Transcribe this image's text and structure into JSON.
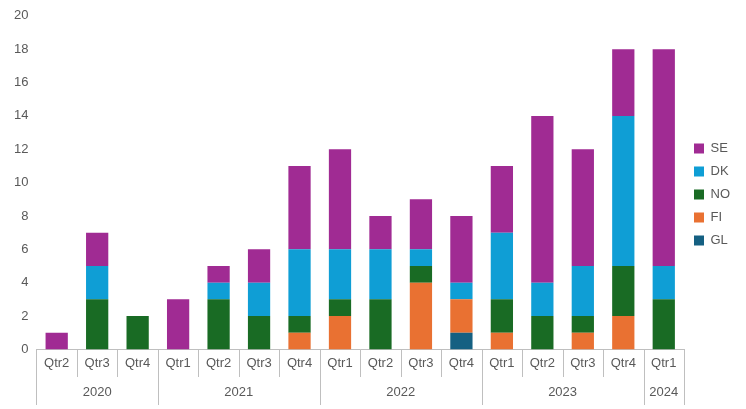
{
  "chart_data": {
    "type": "bar",
    "stacked": true,
    "categories": [
      "Qtr2",
      "Qtr3",
      "Qtr4",
      "Qtr1",
      "Qtr2",
      "Qtr3",
      "Qtr4",
      "Qtr1",
      "Qtr2",
      "Qtr3",
      "Qtr4",
      "Qtr1",
      "Qtr2",
      "Qtr3",
      "Qtr4",
      "Qtr1"
    ],
    "category_groups": [
      {
        "label": "2020",
        "count": 3
      },
      {
        "label": "2021",
        "count": 4
      },
      {
        "label": "2022",
        "count": 4
      },
      {
        "label": "2023",
        "count": 4
      },
      {
        "label": "2024",
        "count": 1
      }
    ],
    "series": [
      {
        "name": "GL",
        "color": "#156082",
        "values": [
          0,
          0,
          0,
          0,
          0,
          0,
          0,
          0,
          0,
          0,
          1,
          0,
          0,
          0,
          0,
          0
        ]
      },
      {
        "name": "FI",
        "color": "#E97132",
        "values": [
          0,
          0,
          0,
          0,
          0,
          0,
          1,
          2,
          0,
          4,
          2,
          1,
          0,
          1,
          2,
          0
        ]
      },
      {
        "name": "NO",
        "color": "#196B24",
        "values": [
          0,
          3,
          2,
          0,
          3,
          2,
          1,
          1,
          3,
          1,
          0,
          2,
          2,
          1,
          3,
          3
        ]
      },
      {
        "name": "DK",
        "color": "#0F9ED5",
        "values": [
          0,
          2,
          0,
          0,
          1,
          2,
          4,
          3,
          3,
          1,
          1,
          4,
          2,
          3,
          9,
          2
        ]
      },
      {
        "name": "SE",
        "color": "#A02B93",
        "values": [
          1,
          2,
          0,
          3,
          1,
          2,
          5,
          6,
          2,
          3,
          4,
          4,
          10,
          7,
          4,
          13
        ]
      }
    ],
    "ylim": [
      0,
      20
    ],
    "yticks": [
      0,
      2,
      4,
      6,
      8,
      10,
      12,
      14,
      16,
      18,
      20
    ],
    "grid": false,
    "legend": "right"
  }
}
